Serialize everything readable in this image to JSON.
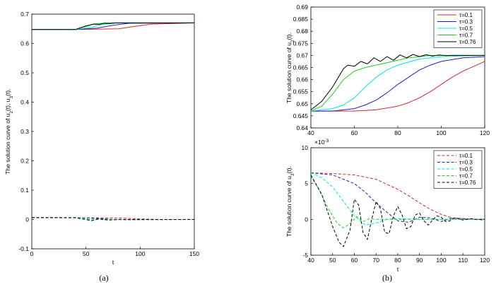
{
  "figure": {
    "captions": [
      "(a)",
      "(b)"
    ]
  },
  "chart_data": [
    {
      "id": "a",
      "type": "line",
      "xlabel": "t",
      "ylabel_parts": [
        "The solution curve of u",
        "2",
        "(t), u",
        "3",
        "(t)."
      ],
      "xlim": [
        0,
        150
      ],
      "ylim": [
        -0.1,
        0.7
      ],
      "xticks": [
        0,
        50,
        100,
        150
      ],
      "yticks": [
        -0.1,
        0,
        0.1,
        0.2,
        0.3,
        0.4,
        0.5,
        0.6,
        0.7
      ],
      "series": [
        {
          "name": "u2 τ=0.1",
          "color": "#d62728",
          "dash": false,
          "x": [
            0,
            40,
            80,
            95,
            110,
            150
          ],
          "values": [
            0.6475,
            0.6475,
            0.65,
            0.658,
            0.666,
            0.67
          ]
        },
        {
          "name": "u2 τ=0.3",
          "color": "#1f1fcc",
          "dash": false,
          "x": [
            0,
            40,
            60,
            75,
            90,
            150
          ],
          "values": [
            0.6475,
            0.6475,
            0.652,
            0.662,
            0.669,
            0.67
          ]
        },
        {
          "name": "u2 τ=0.5",
          "color": "#00e5e5",
          "dash": false,
          "x": [
            0,
            40,
            55,
            65,
            80,
            150
          ],
          "values": [
            0.6475,
            0.6475,
            0.655,
            0.665,
            0.67,
            0.67
          ]
        },
        {
          "name": "u2 τ=0.7",
          "color": "#22cc22",
          "dash": false,
          "x": [
            0,
            40,
            50,
            58,
            70,
            150
          ],
          "values": [
            0.6475,
            0.6475,
            0.658,
            0.667,
            0.67,
            0.67
          ]
        },
        {
          "name": "u2 τ=0.76",
          "color": "#000000",
          "dash": false,
          "x": [
            0,
            40,
            50,
            57,
            62,
            67,
            72,
            77,
            82,
            90,
            150
          ],
          "values": [
            0.6475,
            0.6475,
            0.66,
            0.666,
            0.665,
            0.669,
            0.668,
            0.67,
            0.67,
            0.67,
            0.67
          ]
        },
        {
          "name": "u3 τ=0.1",
          "color": "#d62728",
          "dash": true,
          "x": [
            0,
            40,
            80,
            100,
            120,
            150
          ],
          "values": [
            0.0065,
            0.0065,
            0.005,
            0.002,
            0.0,
            0.0
          ]
        },
        {
          "name": "u3 τ=0.3",
          "color": "#1f1fcc",
          "dash": true,
          "x": [
            0,
            40,
            60,
            75,
            90,
            150
          ],
          "values": [
            0.0065,
            0.0065,
            0.004,
            0.0,
            -0.001,
            0.0
          ]
        },
        {
          "name": "u3 τ=0.5",
          "color": "#00e5e5",
          "dash": true,
          "x": [
            0,
            40,
            55,
            65,
            80,
            150
          ],
          "values": [
            0.0065,
            0.0065,
            0.003,
            -0.001,
            0.0,
            0.0
          ]
        },
        {
          "name": "u3 τ=0.7",
          "color": "#22cc22",
          "dash": true,
          "x": [
            0,
            40,
            50,
            55,
            62,
            70,
            150
          ],
          "values": [
            0.0065,
            0.0065,
            0.002,
            -0.002,
            0.0005,
            0.0,
            0.0
          ]
        },
        {
          "name": "u3 τ=0.76",
          "color": "#000000",
          "dash": true,
          "x": [
            0,
            40,
            50,
            55,
            62,
            70,
            80,
            150
          ],
          "values": [
            0.0065,
            0.006,
            0.0,
            -0.004,
            0.003,
            -0.002,
            0.0,
            0.0
          ]
        }
      ]
    },
    {
      "id": "b-top",
      "type": "line",
      "xlabel": "",
      "ylabel_parts": [
        "The solution curve of u",
        "2",
        "(t)."
      ],
      "xlim": [
        40,
        120
      ],
      "ylim": [
        0.64,
        0.69
      ],
      "xticks": [
        40,
        60,
        80,
        100,
        120
      ],
      "yticks": [
        0.64,
        0.645,
        0.65,
        0.655,
        0.66,
        0.665,
        0.67,
        0.675,
        0.68,
        0.685,
        0.69
      ],
      "legend": {
        "position": "top-right",
        "dash": false
      },
      "series": [
        {
          "name": "τ=0.1",
          "color": "#d62728",
          "x": [
            40,
            50,
            60,
            70,
            80,
            85,
            90,
            95,
            100,
            105,
            110,
            115,
            120
          ],
          "values": [
            0.647,
            0.647,
            0.647,
            0.6475,
            0.649,
            0.6505,
            0.6525,
            0.655,
            0.658,
            0.661,
            0.6635,
            0.6655,
            0.6675
          ]
        },
        {
          "name": "τ=0.3",
          "color": "#1f1fcc",
          "x": [
            40,
            50,
            60,
            65,
            70,
            75,
            80,
            85,
            90,
            95,
            100,
            110,
            120
          ],
          "values": [
            0.647,
            0.647,
            0.648,
            0.6495,
            0.6515,
            0.6545,
            0.658,
            0.661,
            0.664,
            0.666,
            0.6675,
            0.669,
            0.6695
          ]
        },
        {
          "name": "τ=0.5",
          "color": "#00e5e5",
          "x": [
            40,
            50,
            55,
            60,
            65,
            70,
            75,
            80,
            90,
            100,
            120
          ],
          "values": [
            0.647,
            0.648,
            0.6495,
            0.6525,
            0.657,
            0.661,
            0.664,
            0.666,
            0.6685,
            0.6695,
            0.67
          ]
        },
        {
          "name": "τ=0.7",
          "color": "#22cc22",
          "x": [
            40,
            45,
            50,
            55,
            60,
            65,
            70,
            75,
            80,
            85,
            90,
            95,
            100,
            110,
            120
          ],
          "values": [
            0.647,
            0.649,
            0.654,
            0.66,
            0.6635,
            0.665,
            0.666,
            0.667,
            0.668,
            0.669,
            0.6695,
            0.67,
            0.67,
            0.67,
            0.67
          ]
        },
        {
          "name": "τ=0.76",
          "color": "#000000",
          "x": [
            40,
            45,
            50,
            55,
            57,
            60,
            63,
            66,
            69,
            72,
            75,
            78,
            81,
            84,
            87,
            90,
            93,
            96,
            99,
            102,
            105,
            110,
            115,
            120
          ],
          "values": [
            0.6475,
            0.651,
            0.657,
            0.6645,
            0.666,
            0.6655,
            0.6675,
            0.6665,
            0.669,
            0.6675,
            0.6695,
            0.668,
            0.6702,
            0.669,
            0.6704,
            0.6695,
            0.6703,
            0.6697,
            0.6702,
            0.6699,
            0.67,
            0.67,
            0.67,
            0.67
          ]
        }
      ]
    },
    {
      "id": "b-bottom",
      "type": "line",
      "xlabel": "t",
      "ylabel_parts": [
        "The solution curve of u",
        "3",
        "(t)."
      ],
      "exponent_label": "×10",
      "exponent_power": "-3",
      "xlim": [
        40,
        120
      ],
      "ylim": [
        -5,
        10
      ],
      "xticks": [
        40,
        50,
        60,
        70,
        80,
        90,
        100,
        110,
        120
      ],
      "yticks": [
        -5,
        0,
        5,
        10
      ],
      "legend": {
        "position": "top-right",
        "dash": true
      },
      "series": [
        {
          "name": "τ=0.1",
          "color": "#d62728",
          "x": [
            40,
            50,
            60,
            70,
            80,
            85,
            90,
            95,
            100,
            105,
            110,
            115,
            120
          ],
          "values": [
            6.5,
            6.4,
            6.2,
            5.6,
            4.2,
            3.3,
            2.3,
            1.4,
            0.7,
            0.2,
            0.1,
            0.0,
            -0.1
          ]
        },
        {
          "name": "τ=0.3",
          "color": "#1f1fcc",
          "x": [
            40,
            50,
            60,
            65,
            70,
            75,
            80,
            85,
            90,
            95,
            100,
            105,
            110,
            115,
            120
          ],
          "values": [
            6.5,
            6.2,
            5.0,
            3.8,
            2.3,
            1.0,
            -0.2,
            -0.4,
            0.3,
            0.2,
            -0.3,
            0.2,
            0.1,
            0.0,
            0.0
          ]
        },
        {
          "name": "τ=0.5",
          "color": "#00e5e5",
          "x": [
            40,
            45,
            50,
            55,
            60,
            65,
            70,
            75,
            80,
            90,
            100,
            120
          ],
          "values": [
            6.5,
            5.8,
            4.5,
            2.5,
            0.5,
            -0.8,
            -0.5,
            0.0,
            0.1,
            0.0,
            0.0,
            0.0
          ]
        },
        {
          "name": "τ=0.7",
          "color": "#22cc22",
          "x": [
            40,
            44,
            48,
            52,
            55,
            58,
            61,
            64,
            67,
            70,
            75,
            80,
            90,
            100,
            120
          ],
          "values": [
            6.0,
            4.0,
            1.5,
            -0.5,
            -1.2,
            -0.6,
            0.4,
            -0.3,
            0.1,
            0.0,
            0.0,
            0.0,
            0.0,
            0.0,
            0.0
          ]
        },
        {
          "name": "τ=0.76",
          "color": "#000000",
          "x": [
            40,
            45,
            50,
            53,
            55,
            58,
            60,
            62,
            64,
            66,
            68,
            70,
            72,
            74,
            76,
            78,
            80,
            82,
            84,
            86,
            88,
            90,
            92,
            94,
            96,
            98,
            100,
            102,
            104,
            106,
            108,
            110,
            112,
            114,
            116,
            118,
            120
          ],
          "values": [
            6.2,
            3.5,
            -1.0,
            -3.2,
            -3.8,
            -1.5,
            2.8,
            2.0,
            -1.8,
            -2.8,
            0.0,
            2.5,
            1.5,
            -1.8,
            -2.0,
            0.5,
            1.8,
            0.6,
            -1.3,
            -1.0,
            0.6,
            0.9,
            -0.2,
            -0.8,
            -0.1,
            0.5,
            0.3,
            -0.3,
            -0.2,
            0.2,
            0.1,
            -0.1,
            0.0,
            0.1,
            0.0,
            0.0,
            0.0
          ]
        }
      ]
    }
  ]
}
